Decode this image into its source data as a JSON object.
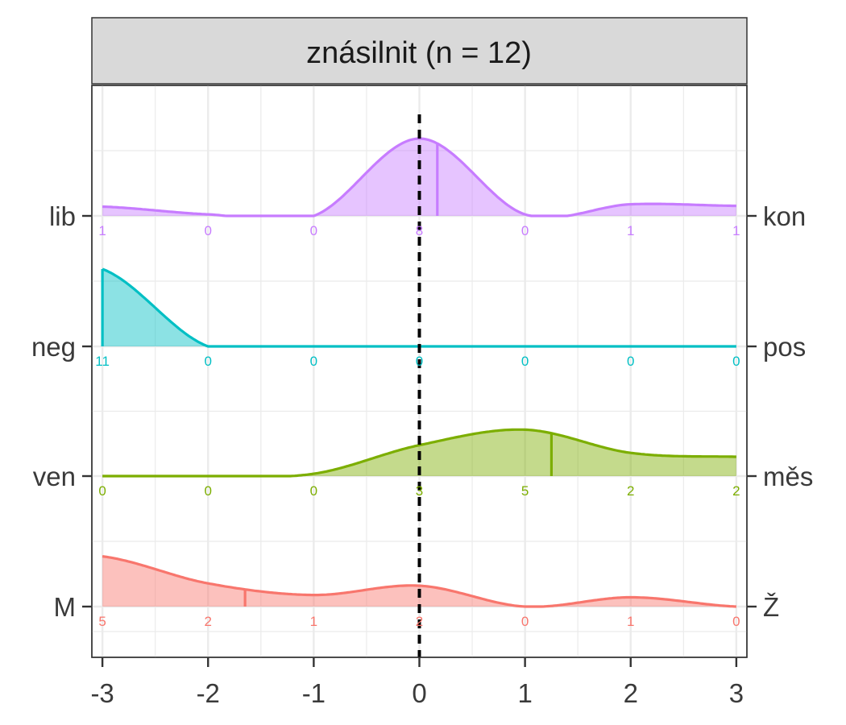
{
  "chart_data": {
    "type": "ridgeline",
    "title": "znásilnit (n = 12)",
    "x_ticks": [
      "-3",
      "-2",
      "-1",
      "0",
      "1",
      "2",
      "3"
    ],
    "x_values": [
      -3,
      -2,
      -1,
      0,
      1,
      2,
      3
    ],
    "xlim": [
      -3.1,
      3.1
    ],
    "reference_line_x": 0,
    "grid": true,
    "rows": [
      {
        "left_label": "lib",
        "right_label": "kon",
        "color": "#c77cff",
        "counts": [
          "1",
          "0",
          "0",
          "8",
          "0",
          "1",
          "1"
        ],
        "mean": 0.17,
        "density": [
          0.12,
          0.02,
          0.0,
          1.0,
          0.02,
          0.15,
          0.13
        ]
      },
      {
        "left_label": "neg",
        "right_label": "pos",
        "color": "#00bfc4",
        "counts": [
          "11",
          "0",
          "0",
          "0",
          "0",
          "0",
          "0"
        ],
        "mean": -3.0,
        "density": [
          1.0,
          0.0,
          0.0,
          0.0,
          0.0,
          0.0,
          0.0
        ]
      },
      {
        "left_label": "ven",
        "right_label": "měs",
        "color": "#7cae00",
        "counts": [
          "0",
          "0",
          "0",
          "3",
          "5",
          "2",
          "2"
        ],
        "mean": 1.25,
        "density": [
          0.0,
          0.0,
          0.03,
          0.4,
          0.6,
          0.3,
          0.25
        ]
      },
      {
        "left_label": "M",
        "right_label": "Ž",
        "color": "#f8766d",
        "counts": [
          "5",
          "2",
          "1",
          "2",
          "0",
          "1",
          "0"
        ],
        "mean": -1.65,
        "density": [
          0.65,
          0.3,
          0.15,
          0.27,
          0.0,
          0.12,
          0.0
        ]
      }
    ]
  }
}
